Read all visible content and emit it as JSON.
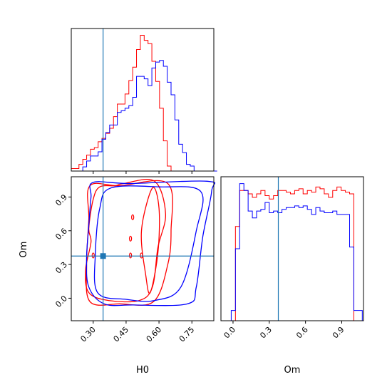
{
  "chart_data": [
    {
      "type": "histogram",
      "panel": "H0 marginal",
      "x_range": [
        0.2,
        0.85
      ],
      "show_y_ticks": false,
      "bins_start": 0.2,
      "bin_width": 0.0175,
      "truth": 0.345,
      "series": [
        {
          "color": "#ff0000",
          "values": [
            0.3,
            0.3,
            0.8,
            1.4,
            1.9,
            2.6,
            2.8,
            3.5,
            3.9,
            4.5,
            5.1,
            6.5,
            8.0,
            8.0,
            9.2,
            10.8,
            12.4,
            14.5,
            16.2,
            15.6,
            15.2,
            13.1,
            10.7,
            7.5,
            3.6,
            0.6,
            0,
            0,
            0,
            0,
            0,
            0,
            0,
            0,
            0,
            0,
            0,
            0
          ]
        },
        {
          "color": "#0000ff",
          "values": [
            0,
            0,
            0,
            0.5,
            1.2,
            1.8,
            1.8,
            2.3,
            3.8,
            4.6,
            5.5,
            5.5,
            7.0,
            7.2,
            7.5,
            7.8,
            8.8,
            11.3,
            11.3,
            11.0,
            10.2,
            12.3,
            13.0,
            13.2,
            12.5,
            10.6,
            9.1,
            6.1,
            3.2,
            2.2,
            0.8,
            0.6,
            0,
            0,
            0,
            0,
            0,
            0
          ]
        }
      ]
    },
    {
      "type": "contour",
      "panel": "H0 vs Om",
      "xlabel": "H0",
      "ylabel": "Om",
      "x_range": [
        0.2,
        0.85
      ],
      "y_range": [
        -0.2,
        1.08
      ],
      "x_ticks": [
        "0.30",
        "0.45",
        "0.60",
        "0.75"
      ],
      "x_tick_values": [
        0.3,
        0.45,
        0.6,
        0.75
      ],
      "y_ticks": [
        "0.0",
        "0.3",
        "0.6",
        "0.9"
      ],
      "y_tick_values": [
        0.0,
        0.3,
        0.6,
        0.9
      ],
      "truth": [
        0.345,
        0.375
      ],
      "contours": [
        {
          "color": "#ff0000",
          "level": "outer",
          "points": [
            [
              0.285,
              1.0
            ],
            [
              0.42,
              1.0
            ],
            [
              0.64,
              1.02
            ],
            [
              0.655,
              0.6
            ],
            [
              0.64,
              0.3
            ],
            [
              0.575,
              -0.03
            ],
            [
              0.42,
              -0.05
            ],
            [
              0.285,
              -0.03
            ],
            [
              0.27,
              0.3
            ],
            [
              0.28,
              0.7
            ]
          ]
        },
        {
          "color": "#ff0000",
          "level": "inner",
          "points": [
            [
              0.28,
              0.62
            ],
            [
              0.3,
              0.88
            ],
            [
              0.33,
              0.99
            ],
            [
              0.4,
              1.0
            ],
            [
              0.44,
              1.02
            ],
            [
              0.58,
              1.04
            ],
            [
              0.63,
              0.75
            ],
            [
              0.595,
              0.45
            ],
            [
              0.57,
              0.1
            ],
            [
              0.51,
              -0.02
            ],
            [
              0.37,
              -0.02
            ],
            [
              0.28,
              0.05
            ],
            [
              0.265,
              0.25
            ],
            [
              0.29,
              0.5
            ]
          ]
        },
        {
          "color": "#ff0000",
          "level": "inner",
          "points": [
            [
              0.52,
              0.6
            ],
            [
              0.57,
              0.98
            ],
            [
              0.6,
              0.8
            ],
            [
              0.595,
              0.4
            ],
            [
              0.56,
              0.05
            ],
            [
              0.54,
              0.2
            ]
          ]
        },
        {
          "color": "#0000ff",
          "level": "outer",
          "points": [
            [
              0.3,
              1.03
            ],
            [
              0.47,
              1.02
            ],
            [
              0.82,
              1.04
            ],
            [
              0.84,
              0.95
            ],
            [
              0.8,
              0.55
            ],
            [
              0.77,
              0.1
            ],
            [
              0.73,
              -0.05
            ],
            [
              0.48,
              -0.06
            ],
            [
              0.35,
              -0.05
            ],
            [
              0.28,
              0.1
            ],
            [
              0.27,
              0.35
            ],
            [
              0.28,
              0.65
            ],
            [
              0.29,
              0.9
            ]
          ]
        },
        {
          "color": "#0000ff",
          "level": "inner",
          "points": [
            [
              0.38,
              0.98
            ],
            [
              0.6,
              0.99
            ],
            [
              0.79,
              0.95
            ],
            [
              0.77,
              0.6
            ],
            [
              0.7,
              0.1
            ],
            [
              0.58,
              -0.02
            ],
            [
              0.45,
              -0.01
            ],
            [
              0.32,
              0.05
            ],
            [
              0.31,
              0.4
            ],
            [
              0.33,
              0.8
            ]
          ]
        }
      ]
    },
    {
      "type": "histogram",
      "panel": "Om marginal",
      "xlabel": "Om",
      "x_range": [
        -0.1,
        1.08
      ],
      "x_ticks": [
        "0.0",
        "0.3",
        "0.6",
        "0.9"
      ],
      "x_tick_values": [
        0.0,
        0.3,
        0.6,
        0.9
      ],
      "show_y_ticks": false,
      "bins_start": -0.05,
      "bin_width": 0.035,
      "truth": 0.375,
      "series": [
        {
          "color": "#ff0000",
          "values": [
            0,
            0,
            5.5,
            7.6,
            7.6,
            7.4,
            7.2,
            7.4,
            7.6,
            7.3,
            7.1,
            7.3,
            7.6,
            7.6,
            7.5,
            7.4,
            7.6,
            7.7,
            7.4,
            7.6,
            7.5,
            7.8,
            7.7,
            7.4,
            7.2,
            7.6,
            7.8,
            7.6,
            7.5,
            7.4,
            0,
            0
          ]
        },
        {
          "color": "#0000ff",
          "values": [
            0,
            0.6,
            4.2,
            8.0,
            7.6,
            6.4,
            6.0,
            6.4,
            6.5,
            6.9,
            6.3,
            6.4,
            6.3,
            6.5,
            6.6,
            6.6,
            6.7,
            6.6,
            6.7,
            6.5,
            6.2,
            6.6,
            6.4,
            6.3,
            6.3,
            6.4,
            6.2,
            6.2,
            6.2,
            4.3,
            0.6,
            0.6
          ]
        }
      ]
    }
  ]
}
